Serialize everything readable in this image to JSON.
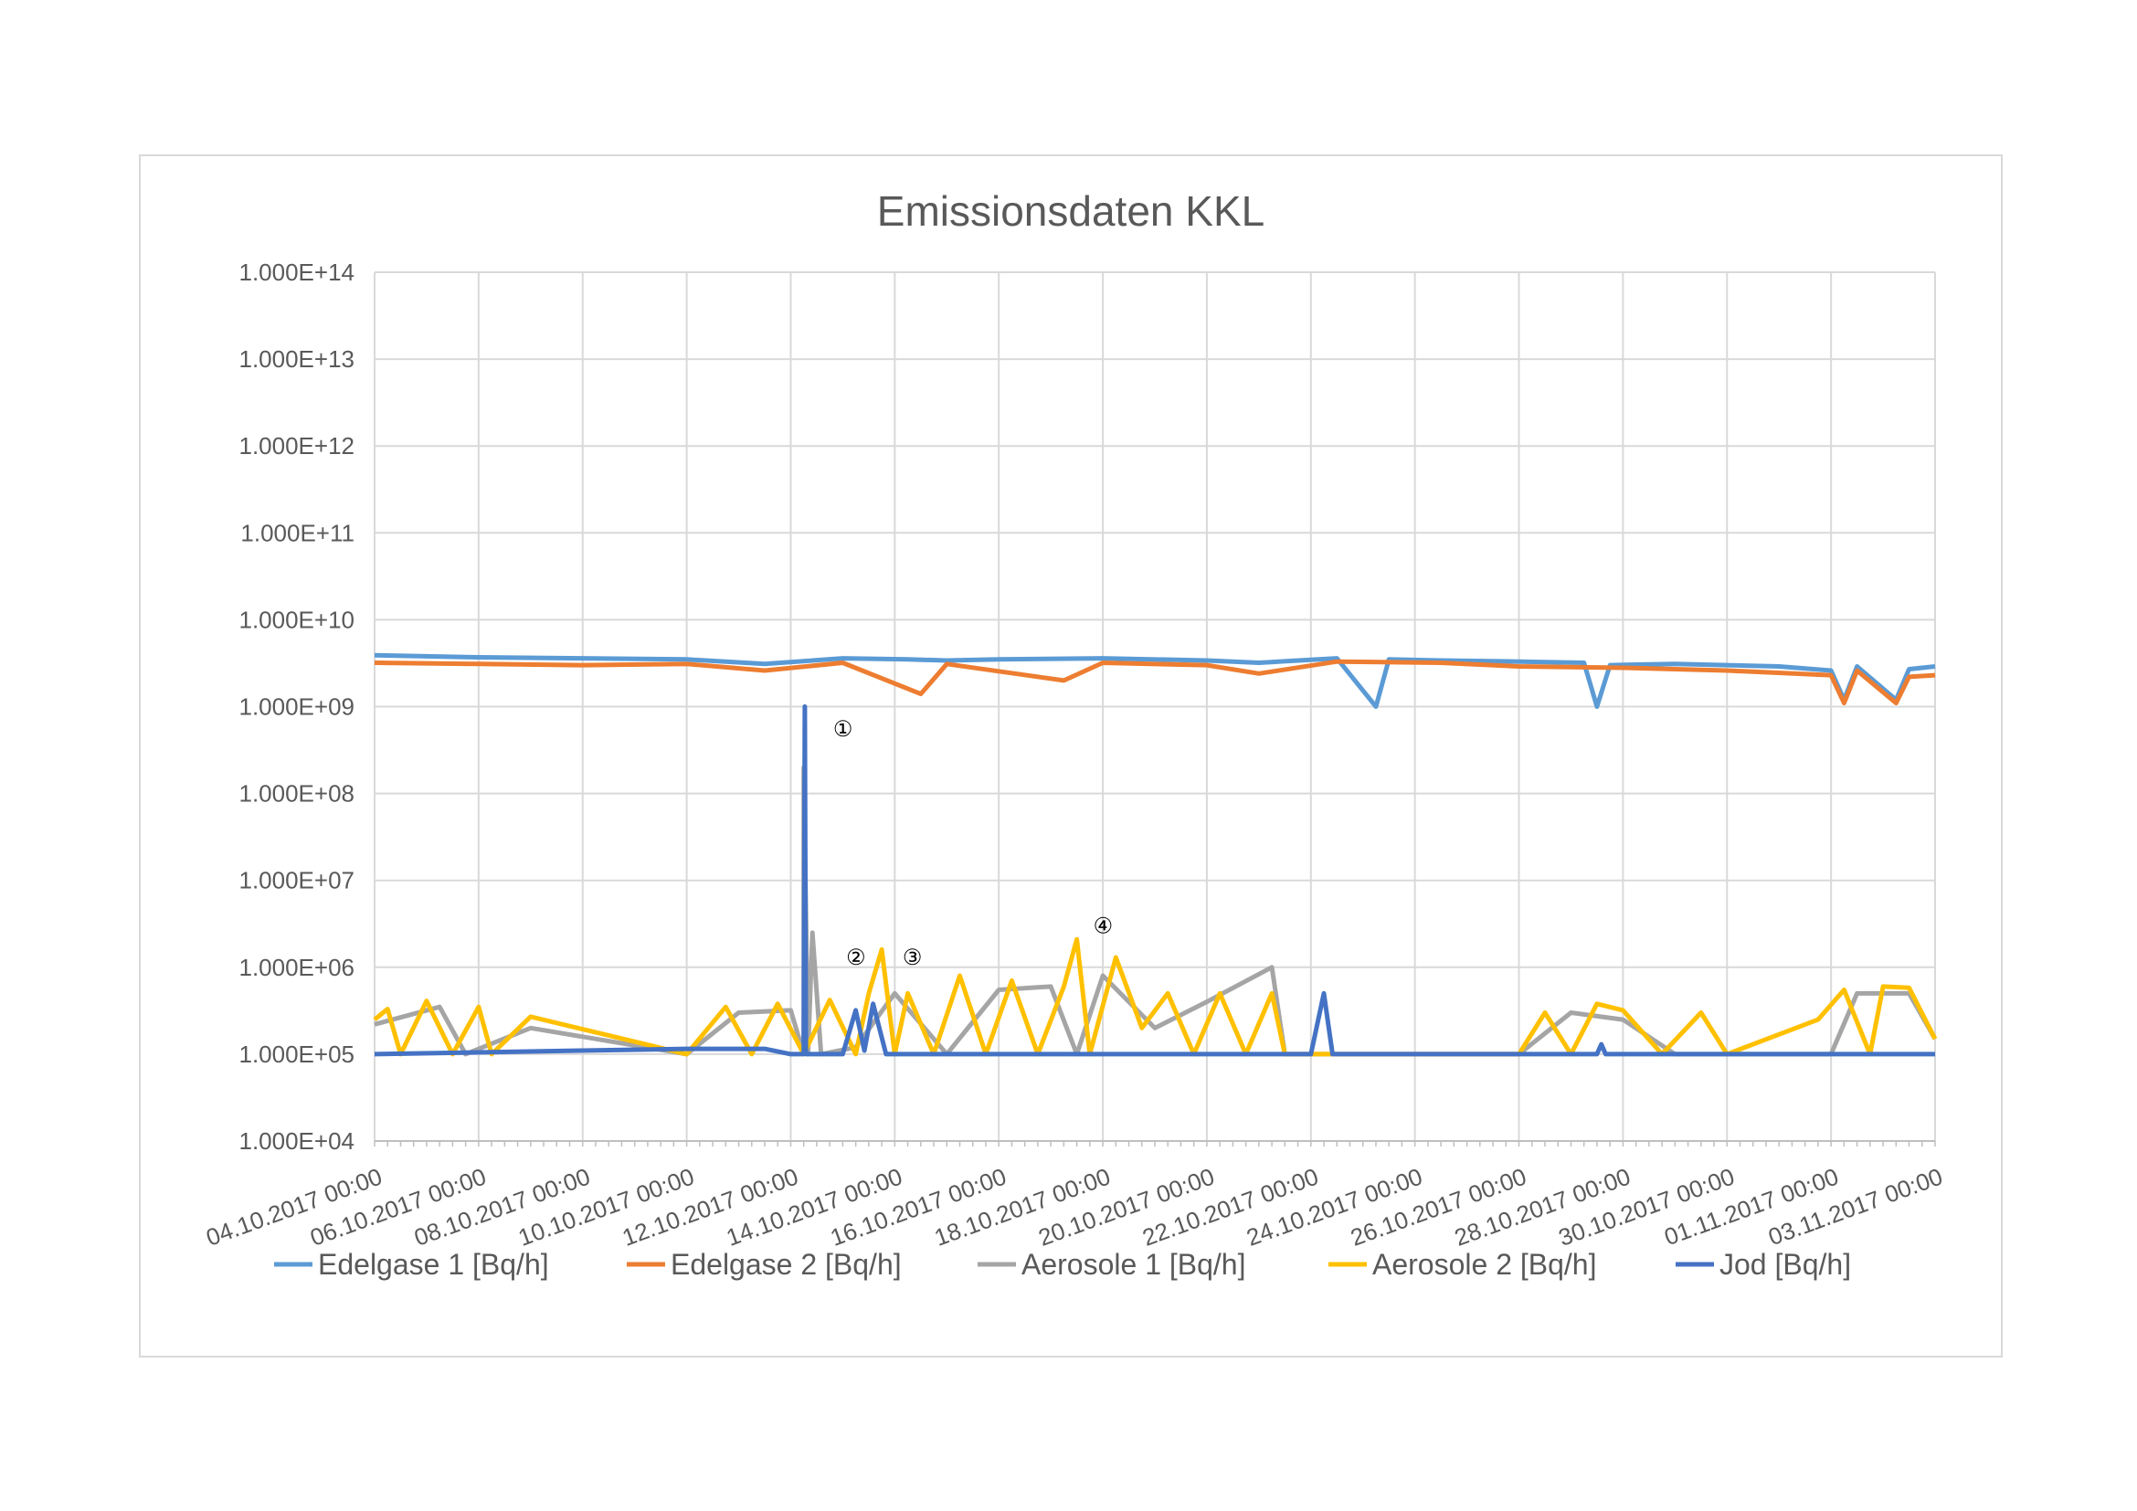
{
  "chart_data": {
    "type": "line",
    "title": "Emissionsdaten KKL",
    "xlabel": "",
    "ylabel": "",
    "y_scale": "log",
    "ylim": [
      10000,
      100000000000000
    ],
    "y_ticks": [
      10000,
      100000,
      1000000,
      10000000,
      100000000,
      1000000000,
      10000000000,
      100000000000,
      1000000000000,
      10000000000000,
      100000000000000
    ],
    "y_tick_labels": [
      "1.000E+04",
      "1.000E+05",
      "1.000E+06",
      "1.000E+07",
      "1.000E+08",
      "1.000E+09",
      "1.000E+10",
      "1.000E+11",
      "1.000E+12",
      "1.000E+13",
      "1.000E+14"
    ],
    "xlim": [
      "2017-10-04T00:00",
      "2017-11-03T00:00"
    ],
    "x_tick_labels": [
      "04.10.2017 00:00",
      "06.10.2017 00:00",
      "08.10.2017 00:00",
      "10.10.2017 00:00",
      "12.10.2017 00:00",
      "14.10.2017 00:00",
      "16.10.2017 00:00",
      "18.10.2017 00:00",
      "20.10.2017 00:00",
      "22.10.2017 00:00",
      "24.10.2017 00:00",
      "26.10.2017 00:00",
      "28.10.2017 00:00",
      "30.10.2017 00:00",
      "01.11.2017 00:00",
      "03.11.2017 00:00"
    ],
    "grid": true,
    "legend_position": "bottom",
    "series": [
      {
        "name": "Edelgase 1 [Bq/h]",
        "color": "#5b9bd5",
        "points": [
          [
            "2017-10-04T00:00",
            3900000000.0
          ],
          [
            "2017-10-06T00:00",
            3700000000.0
          ],
          [
            "2017-10-08T00:00",
            3600000000.0
          ],
          [
            "2017-10-10T00:00",
            3500000000.0
          ],
          [
            "2017-10-11T12:00",
            3100000000.0
          ],
          [
            "2017-10-13T00:00",
            3600000000.0
          ],
          [
            "2017-10-14T06:00",
            3500000000.0
          ],
          [
            "2017-10-15T00:00",
            3400000000.0
          ],
          [
            "2017-10-16T00:00",
            3500000000.0
          ],
          [
            "2017-10-18T00:00",
            3600000000.0
          ],
          [
            "2017-10-20T00:00",
            3400000000.0
          ],
          [
            "2017-10-21T00:00",
            3200000000.0
          ],
          [
            "2017-10-22T12:00",
            3600000000.0
          ],
          [
            "2017-10-23T06:00",
            1000000000.0
          ],
          [
            "2017-10-23T12:00",
            3500000000.0
          ],
          [
            "2017-10-24T12:00",
            3400000000.0
          ],
          [
            "2017-10-26T00:00",
            3300000000.0
          ],
          [
            "2017-10-27T06:00",
            3200000000.0
          ],
          [
            "2017-10-27T12:00",
            1000000000.0
          ],
          [
            "2017-10-27T18:00",
            3000000000.0
          ],
          [
            "2017-10-29T00:00",
            3100000000.0
          ],
          [
            "2017-10-31T00:00",
            2900000000.0
          ],
          [
            "2017-11-01T00:00",
            2600000000.0
          ],
          [
            "2017-11-01T06:00",
            1200000000.0
          ],
          [
            "2017-11-01T12:00",
            2900000000.0
          ],
          [
            "2017-11-02T06:00",
            1200000000.0
          ],
          [
            "2017-11-02T12:00",
            2700000000.0
          ],
          [
            "2017-11-03T00:00",
            2900000000.0
          ]
        ]
      },
      {
        "name": "Edelgase 2 [Bq/h]",
        "color": "#ed7d31",
        "points": [
          [
            "2017-10-04T00:00",
            3200000000.0
          ],
          [
            "2017-10-06T00:00",
            3100000000.0
          ],
          [
            "2017-10-08T00:00",
            3000000000.0
          ],
          [
            "2017-10-10T00:00",
            3100000000.0
          ],
          [
            "2017-10-11T12:00",
            2600000000.0
          ],
          [
            "2017-10-13T00:00",
            3200000000.0
          ],
          [
            "2017-10-14T12:00",
            1400000000.0
          ],
          [
            "2017-10-15T00:00",
            3100000000.0
          ],
          [
            "2017-10-17T06:00",
            2000000000.0
          ],
          [
            "2017-10-18T00:00",
            3200000000.0
          ],
          [
            "2017-10-20T00:00",
            3000000000.0
          ],
          [
            "2017-10-21T00:00",
            2400000000.0
          ],
          [
            "2017-10-22T12:00",
            3300000000.0
          ],
          [
            "2017-10-24T12:00",
            3200000000.0
          ],
          [
            "2017-10-26T00:00",
            2900000000.0
          ],
          [
            "2017-10-28T00:00",
            2800000000.0
          ],
          [
            "2017-10-30T00:00",
            2600000000.0
          ],
          [
            "2017-11-01T00:00",
            2300000000.0
          ],
          [
            "2017-11-01T06:00",
            1100000000.0
          ],
          [
            "2017-11-01T12:00",
            2600000000.0
          ],
          [
            "2017-11-02T06:00",
            1100000000.0
          ],
          [
            "2017-11-02T12:00",
            2200000000.0
          ],
          [
            "2017-11-03T00:00",
            2300000000.0
          ]
        ]
      },
      {
        "name": "Aerosole 1 [Bq/h]",
        "color": "#a5a5a5",
        "points": [
          [
            "2017-10-04T00:00",
            220000.0
          ],
          [
            "2017-10-05T06:00",
            350000.0
          ],
          [
            "2017-10-05T18:00",
            100000.0
          ],
          [
            "2017-10-07T00:00",
            200000.0
          ],
          [
            "2017-10-10T00:00",
            100000.0
          ],
          [
            "2017-10-11T00:00",
            300000.0
          ],
          [
            "2017-10-12T00:00",
            320000.0
          ],
          [
            "2017-10-12T06:00",
            100000.0
          ],
          [
            "2017-10-12T06:01",
            200000000.0
          ],
          [
            "2017-10-12T08:00",
            100000.0
          ],
          [
            "2017-10-12T10:00",
            2500000.0
          ],
          [
            "2017-10-12T14:00",
            100000.0
          ],
          [
            "2017-10-13T06:00",
            120000.0
          ],
          [
            "2017-10-14T00:00",
            500000.0
          ],
          [
            "2017-10-15T00:00",
            100000.0
          ],
          [
            "2017-10-16T00:00",
            550000.0
          ],
          [
            "2017-10-17T00:00",
            600000.0
          ],
          [
            "2017-10-17T12:00",
            100000.0
          ],
          [
            "2017-10-18T00:00",
            800000.0
          ],
          [
            "2017-10-19T00:00",
            200000.0
          ],
          [
            "2017-10-20T00:00",
            400000.0
          ],
          [
            "2017-10-21T06:00",
            1000000.0
          ],
          [
            "2017-10-21T12:00",
            100000.0
          ],
          [
            "2017-10-26T00:00",
            100000.0
          ],
          [
            "2017-10-27T00:00",
            300000.0
          ],
          [
            "2017-10-28T00:00",
            250000.0
          ],
          [
            "2017-10-29T00:00",
            100000.0
          ],
          [
            "2017-11-01T00:00",
            100000.0
          ],
          [
            "2017-11-01T12:00",
            500000.0
          ],
          [
            "2017-11-02T12:00",
            500000.0
          ],
          [
            "2017-11-03T00:00",
            150000.0
          ]
        ]
      },
      {
        "name": "Aerosole 2 [Bq/h]",
        "color": "#ffc000",
        "points": [
          [
            "2017-10-04T00:00",
            250000.0
          ],
          [
            "2017-10-04T06:00",
            330000.0
          ],
          [
            "2017-10-04T12:00",
            100000.0
          ],
          [
            "2017-10-05T00:00",
            410000.0
          ],
          [
            "2017-10-05T12:00",
            100000.0
          ],
          [
            "2017-10-06T00:00",
            350000.0
          ],
          [
            "2017-10-06T06:00",
            100000.0
          ],
          [
            "2017-10-07T00:00",
            270000.0
          ],
          [
            "2017-10-10T00:00",
            100000.0
          ],
          [
            "2017-10-10T18:00",
            350000.0
          ],
          [
            "2017-10-11T06:00",
            100000.0
          ],
          [
            "2017-10-11T18:00",
            380000.0
          ],
          [
            "2017-10-12T06:00",
            100000.0
          ],
          [
            "2017-10-12T18:00",
            420000.0
          ],
          [
            "2017-10-13T06:00",
            100000.0
          ],
          [
            "2017-10-13T12:00",
            500000.0
          ],
          [
            "2017-10-13T18:00",
            1600000.0
          ],
          [
            "2017-10-14T00:00",
            100000.0
          ],
          [
            "2017-10-14T06:00",
            500000.0
          ],
          [
            "2017-10-14T18:00",
            100000.0
          ],
          [
            "2017-10-15T06:00",
            800000.0
          ],
          [
            "2017-10-15T18:00",
            100000.0
          ],
          [
            "2017-10-16T06:00",
            700000.0
          ],
          [
            "2017-10-16T18:00",
            100000.0
          ],
          [
            "2017-10-17T06:00",
            600000.0
          ],
          [
            "2017-10-17T12:00",
            2100000.0
          ],
          [
            "2017-10-17T18:00",
            100000.0
          ],
          [
            "2017-10-18T06:00",
            1300000.0
          ],
          [
            "2017-10-18T18:00",
            200000.0
          ],
          [
            "2017-10-19T06:00",
            500000.0
          ],
          [
            "2017-10-19T18:00",
            100000.0
          ],
          [
            "2017-10-20T06:00",
            500000.0
          ],
          [
            "2017-10-20T18:00",
            100000.0
          ],
          [
            "2017-10-21T06:00",
            500000.0
          ],
          [
            "2017-10-21T12:00",
            100000.0
          ],
          [
            "2017-10-26T00:00",
            100000.0
          ],
          [
            "2017-10-26T12:00",
            300000.0
          ],
          [
            "2017-10-27T00:00",
            100000.0
          ],
          [
            "2017-10-27T12:00",
            380000.0
          ],
          [
            "2017-10-28T00:00",
            320000.0
          ],
          [
            "2017-10-28T18:00",
            100000.0
          ],
          [
            "2017-10-29T12:00",
            300000.0
          ],
          [
            "2017-10-30T00:00",
            100000.0
          ],
          [
            "2017-10-31T18:00",
            250000.0
          ],
          [
            "2017-11-01T06:00",
            550000.0
          ],
          [
            "2017-11-01T18:00",
            100000.0
          ],
          [
            "2017-11-02T00:00",
            600000.0
          ],
          [
            "2017-11-02T12:00",
            580000.0
          ],
          [
            "2017-11-03T00:00",
            150000.0
          ]
        ]
      },
      {
        "name": "Jod [Bq/h]",
        "color": "#4472c4",
        "points": [
          [
            "2017-10-04T00:00",
            100000.0
          ],
          [
            "2017-10-08T00:00",
            110000.0
          ],
          [
            "2017-10-10T00:00",
            115000.0
          ],
          [
            "2017-10-11T12:00",
            115000.0
          ],
          [
            "2017-10-12T00:00",
            100000.0
          ],
          [
            "2017-10-12T06:00",
            100000.0
          ],
          [
            "2017-10-12T06:30",
            1000000000.0
          ],
          [
            "2017-10-12T07:00",
            100000.0
          ],
          [
            "2017-10-13T00:00",
            100000.0
          ],
          [
            "2017-10-13T06:00",
            320000.0
          ],
          [
            "2017-10-13T10:00",
            110000.0
          ],
          [
            "2017-10-13T14:00",
            380000.0
          ],
          [
            "2017-10-13T20:00",
            100000.0
          ],
          [
            "2017-10-22T00:00",
            100000.0
          ],
          [
            "2017-10-22T06:00",
            500000.0
          ],
          [
            "2017-10-22T10:00",
            100000.0
          ],
          [
            "2017-10-27T12:00",
            100000.0
          ],
          [
            "2017-10-27T14:00",
            130000.0
          ],
          [
            "2017-10-27T16:00",
            100000.0
          ],
          [
            "2017-11-03T00:00",
            100000.0
          ]
        ]
      }
    ],
    "annotations": [
      {
        "label": "①",
        "x": "2017-10-12T12:00",
        "y": 550000000.0
      },
      {
        "label": "②",
        "x": "2017-10-12T18:00",
        "y": 1300000.0
      },
      {
        "label": "③",
        "x": "2017-10-13T20:00",
        "y": 1300000.0
      },
      {
        "label": "④",
        "x": "2017-10-17T12:00",
        "y": 3000000.0
      }
    ]
  }
}
